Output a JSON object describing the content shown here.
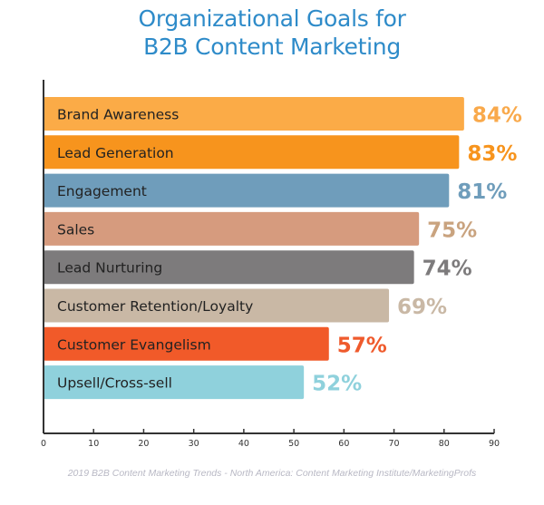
{
  "chart_data": {
    "type": "bar",
    "orientation": "horizontal",
    "title": "Organizational Goals for B2B Content Marketing",
    "title_lines": [
      "Organizational Goals for",
      "B2B Content Marketing"
    ],
    "categories": [
      "Brand Awareness",
      "Lead Generation",
      "Engagement",
      "Sales",
      "Lead Nurturing",
      "Customer Retention/Loyalty",
      "Customer Evangelism",
      "Upsell/Cross-sell"
    ],
    "values": [
      84,
      83,
      81,
      75,
      74,
      69,
      57,
      52
    ],
    "data_labels": [
      "84%",
      "83%",
      "81%",
      "75%",
      "74%",
      "69%",
      "57%",
      "52%"
    ],
    "bar_colors": [
      "#fbab47",
      "#f7941d",
      "#6f9dbb",
      "#d69b7e",
      "#7d7b7c",
      "#c9b8a5",
      "#f15a29",
      "#8fd1dc"
    ],
    "label_colors": [
      "#f9a94b",
      "#f7941d",
      "#6f9dbb",
      "#c9a37f",
      "#7d7b7c",
      "#c9b8a5",
      "#ef5a2c",
      "#8fd1dc"
    ],
    "xlim": [
      0,
      90
    ],
    "xticks": [
      0,
      10,
      20,
      30,
      40,
      50,
      60,
      70,
      80,
      90
    ],
    "xlabel": "",
    "ylabel": "",
    "grid": false,
    "legend": "none",
    "title_color": "#2e8bc9"
  },
  "caption": "2019 B2B Content Marketing Trends - North America: Content Marketing Institute/MarketingProfs"
}
